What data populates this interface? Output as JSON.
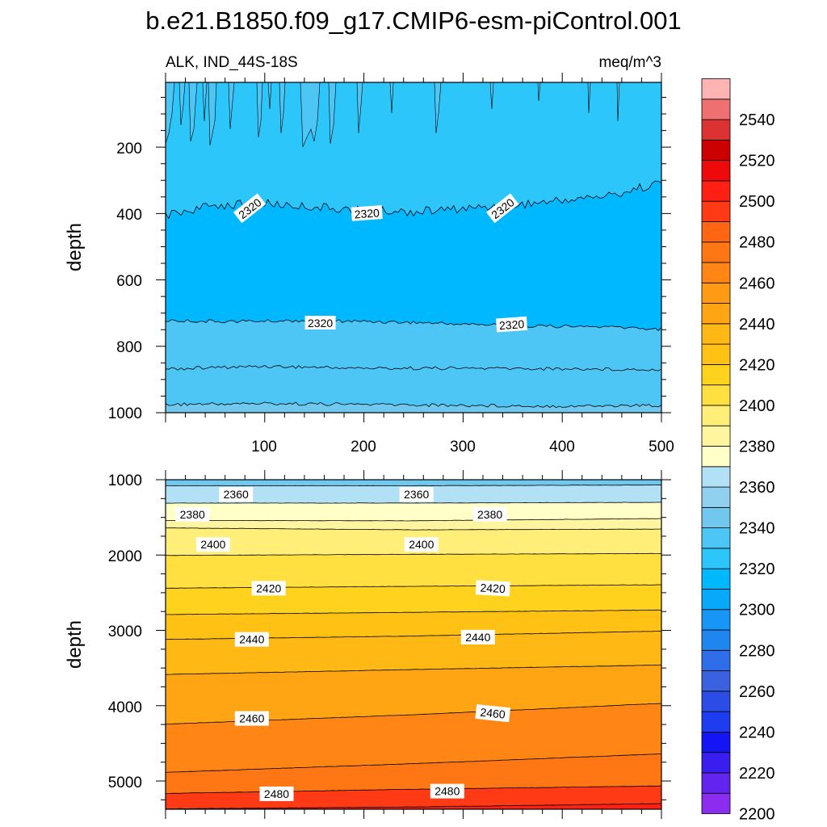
{
  "chart_data": {
    "type": "heatmap",
    "title": "b.e21.B1850.f09_g17.CMIP6-esm-piControl.001",
    "variable": "ALK, IND_44S-18S",
    "units": "meq/m^3",
    "colorbar": {
      "levels": [
        2200,
        2210,
        2220,
        2230,
        2240,
        2250,
        2260,
        2270,
        2280,
        2290,
        2300,
        2310,
        2320,
        2330,
        2340,
        2350,
        2360,
        2370,
        2380,
        2390,
        2400,
        2410,
        2420,
        2430,
        2440,
        2450,
        2460,
        2470,
        2480,
        2490,
        2500,
        2510,
        2520,
        2530,
        2540,
        2550
      ],
      "colors": [
        "#8c2cf0",
        "#6224ee",
        "#3a1ef0",
        "#1414f5",
        "#1f3df0",
        "#2b4ce6",
        "#3a62e0",
        "#2f6ee8",
        "#1f86f0",
        "#1896f6",
        "#08a8fa",
        "#00b8ff",
        "#2cc6fa",
        "#4ec6f5",
        "#70c8ee",
        "#92d0f0",
        "#b2e0f4",
        "#ffffc8",
        "#fff5a0",
        "#ffee78",
        "#ffe040",
        "#ffd21e",
        "#ffc214",
        "#ffb814",
        "#ffa514",
        "#ff9a14",
        "#ff8514",
        "#ff7614",
        "#ff6614",
        "#ff3a14",
        "#ff2014",
        "#ee0a0a",
        "#cc0000",
        "#dc3232",
        "#ee7070",
        "#ffb4b4"
      ],
      "tick_labels": [
        "2200",
        "2220",
        "2240",
        "2260",
        "2280",
        "2300",
        "2320",
        "2340",
        "2360",
        "2380",
        "2400",
        "2420",
        "2440",
        "2460",
        "2480",
        "2500",
        "2520",
        "2540"
      ]
    },
    "panels": [
      {
        "name": "upper",
        "ylabel": "depth",
        "ylim": [
          1000,
          5
        ],
        "xlim": [
          0,
          500
        ],
        "ytick_labels": [
          "200",
          "400",
          "600",
          "800",
          "1000"
        ],
        "xtick_labels": [
          "100",
          "200",
          "300",
          "400",
          "500"
        ],
        "contour_lines": [
          {
            "level": 2320,
            "x": [
              0,
              50,
              100,
              150,
              200,
              250,
              300,
              350,
              400,
              450,
              500
            ],
            "depth": [
              405,
              375,
              370,
              380,
              390,
              395,
              385,
              375,
              360,
              345,
              305
            ]
          },
          {
            "level": 2320,
            "x": [
              0,
              50,
              100,
              150,
              200,
              250,
              300,
              350,
              400,
              450,
              500
            ],
            "depth": [
              722,
              725,
              724,
              722,
              725,
              728,
              733,
              737,
              740,
              742,
              748
            ]
          },
          {
            "level": 2330,
            "x": [
              0,
              100,
              200,
              300,
              400,
              500
            ],
            "depth": [
              868,
              860,
              866,
              866,
              868,
              870
            ]
          },
          {
            "level": 2340,
            "x": [
              0,
              100,
              200,
              300,
              400,
              500
            ],
            "depth": [
              975,
              972,
              975,
              978,
              980,
              978
            ]
          }
        ],
        "contour_labels": [
          {
            "text": "2320",
            "x": 85,
            "depth": 385
          },
          {
            "text": "2320",
            "x": 203,
            "depth": 400
          },
          {
            "text": "2320",
            "x": 340,
            "depth": 385
          },
          {
            "text": "2320",
            "x": 156,
            "depth": 730
          },
          {
            "text": "2320",
            "x": 349,
            "depth": 735
          }
        ]
      },
      {
        "name": "lower",
        "ylabel": "depth",
        "ylim": [
          5375,
          1000
        ],
        "xlim": [
          0,
          500
        ],
        "ytick_labels": [
          "1000",
          "2000",
          "3000",
          "4000",
          "5000"
        ],
        "contour_lines": [
          {
            "level": 2350,
            "x": [
              0,
              250,
              500
            ],
            "depth": [
              1080,
              1080,
              1070
            ]
          },
          {
            "level": 2360,
            "x": [
              0,
              250,
              500
            ],
            "depth": [
              1310,
              1310,
              1300
            ]
          },
          {
            "level": 2370,
            "x": [
              0,
              250,
              500
            ],
            "depth": [
              1540,
              1545,
              1515
            ]
          },
          {
            "level": 2380,
            "x": [
              0,
              250,
              500
            ],
            "depth": [
              1640,
              1665,
              1655
            ]
          },
          {
            "level": 2390,
            "x": [
              0,
              250,
              500
            ],
            "depth": [
              2005,
              1990,
              1980
            ]
          },
          {
            "level": 2400,
            "x": [
              0,
              250,
              500
            ],
            "depth": [
              2440,
              2415,
              2395
            ]
          },
          {
            "level": 2410,
            "x": [
              0,
              250,
              500
            ],
            "depth": [
              2790,
              2760,
              2730
            ]
          },
          {
            "level": 2420,
            "x": [
              0,
              250,
              500
            ],
            "depth": [
              3120,
              3075,
              3010
            ]
          },
          {
            "level": 2430,
            "x": [
              0,
              250,
              500
            ],
            "depth": [
              3585,
              3520,
              3460
            ]
          },
          {
            "level": 2440,
            "x": [
              0,
              250,
              500
            ],
            "depth": [
              4245,
              4120,
              3970
            ]
          },
          {
            "level": 2450,
            "x": [
              0,
              250,
              500
            ],
            "depth": [
              4885,
              4770,
              4640
            ]
          },
          {
            "level": 2460,
            "x": [
              0,
              250,
              500
            ],
            "depth": [
              5165,
              5110,
              5065
            ]
          },
          {
            "level": 2470,
            "x": [
              0,
              250,
              500
            ],
            "depth": [
              5370,
              5345,
              5300
            ]
          }
        ],
        "contour_labels": [
          {
            "text": "2360",
            "x": 71,
            "depth": 1195
          },
          {
            "text": "2360",
            "x": 253,
            "depth": 1195
          },
          {
            "text": "2380",
            "x": 27,
            "depth": 1460
          },
          {
            "text": "2380",
            "x": 327,
            "depth": 1460
          },
          {
            "text": "2400",
            "x": 48,
            "depth": 1860
          },
          {
            "text": "2400",
            "x": 258,
            "depth": 1860
          },
          {
            "text": "2420",
            "x": 104,
            "depth": 2440
          },
          {
            "text": "2420",
            "x": 330,
            "depth": 2440
          },
          {
            "text": "2440",
            "x": 87,
            "depth": 3120
          },
          {
            "text": "2440",
            "x": 315,
            "depth": 3090
          },
          {
            "text": "2460",
            "x": 87,
            "depth": 4170
          },
          {
            "text": "2460",
            "x": 330,
            "depth": 4100
          },
          {
            "text": "2480",
            "x": 112,
            "depth": 5170
          },
          {
            "text": "2480",
            "x": 284,
            "depth": 5135
          }
        ]
      }
    ]
  }
}
